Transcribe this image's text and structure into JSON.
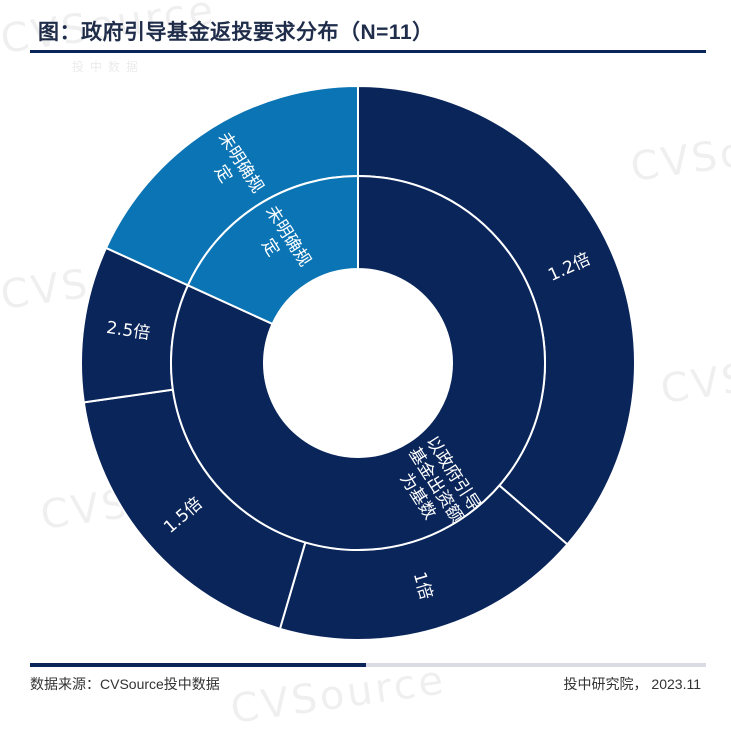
{
  "title": "图：政府引导基金返投要求分布（N=11）",
  "footer": {
    "source": "数据来源：CVSource投中数据",
    "credit": "投中研究院， 2023.11"
  },
  "watermark": {
    "text": "CVSource",
    "sub": "投中数据"
  },
  "colors": {
    "dark": "#0a255a",
    "light": "#0a74b4",
    "border": "#ffffff"
  },
  "chart_data": {
    "type": "sunburst",
    "title": "图：政府引导基金返投要求分布（N=11）",
    "inner": [
      {
        "label": "以政府引导基金出资额为基数",
        "value": 9,
        "color": "#0a255a"
      },
      {
        "label": "未明确规定",
        "value": 2,
        "color": "#0a74b4"
      }
    ],
    "outer": [
      {
        "label": "1.2倍",
        "value": 4,
        "parent": "以政府引导基金出资额为基数",
        "color": "#0a255a"
      },
      {
        "label": "1倍",
        "value": 2,
        "parent": "以政府引导基金出资额为基数",
        "color": "#0a255a"
      },
      {
        "label": "1.5倍",
        "value": 2,
        "parent": "以政府引导基金出资额为基数",
        "color": "#0a255a"
      },
      {
        "label": "2.5倍",
        "value": 1,
        "parent": "以政府引导基金出资额为基数",
        "color": "#0a255a"
      },
      {
        "label": "未明确规定",
        "value": 2,
        "parent": "未明确规定",
        "color": "#0a74b4"
      }
    ]
  }
}
